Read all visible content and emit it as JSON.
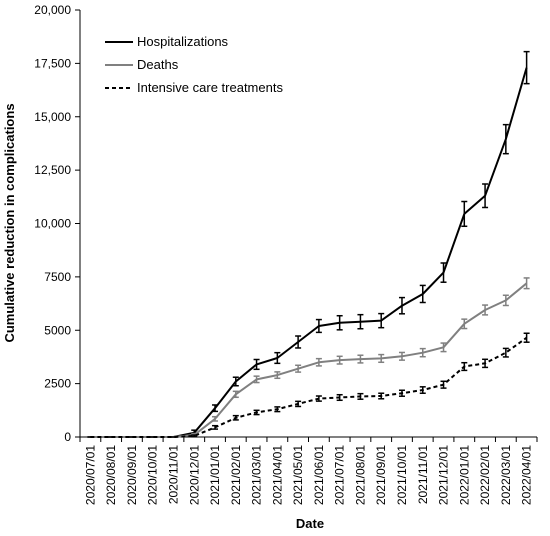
{
  "chart_data": {
    "type": "line",
    "xlabel": "Date",
    "ylabel": "Cumulative reduction in complications",
    "ylim": [
      0,
      20000
    ],
    "y_ticks": [
      "0",
      "2500",
      "5000",
      "7500",
      "10,000",
      "12,500",
      "15,000",
      "17,500",
      "20,000"
    ],
    "y_tick_values": [
      0,
      2500,
      5000,
      7500,
      10000,
      12500,
      15000,
      17500,
      20000
    ],
    "grid": false,
    "legend_position": "top-left",
    "categories": [
      "2020/07/01",
      "2020/08/01",
      "2020/09/01",
      "2020/10/01",
      "2020/11/01",
      "2020/12/01",
      "2021/01/01",
      "2021/02/01",
      "2021/03/01",
      "2021/04/01",
      "2021/05/01",
      "2021/06/01",
      "2021/07/01",
      "2021/08/01",
      "2021/09/01",
      "2021/10/01",
      "2021/11/01",
      "2021/12/01",
      "2022/01/01",
      "2022/02/01",
      "2022/03/01",
      "2022/04/01"
    ],
    "series": [
      {
        "name": "Hospitalizations",
        "color": "#000000",
        "dash": "solid",
        "values": [
          0,
          0,
          0,
          0,
          0,
          200,
          1350,
          2600,
          3400,
          3700,
          4450,
          5200,
          5350,
          5400,
          5450,
          6150,
          6700,
          7700,
          10450,
          11300,
          13950,
          17300
        ],
        "errors": [
          0,
          0,
          0,
          0,
          0,
          120,
          150,
          200,
          230,
          250,
          280,
          300,
          330,
          330,
          330,
          380,
          400,
          450,
          580,
          550,
          680,
          750
        ]
      },
      {
        "name": "Deaths",
        "color": "#808080",
        "dash": "solid",
        "values": [
          0,
          0,
          0,
          0,
          0,
          100,
          850,
          2000,
          2700,
          2900,
          3200,
          3500,
          3600,
          3650,
          3680,
          3780,
          3950,
          4200,
          5300,
          5950,
          6400,
          7200
        ],
        "errors": [
          0,
          0,
          0,
          0,
          0,
          60,
          100,
          140,
          150,
          150,
          160,
          170,
          180,
          180,
          180,
          180,
          190,
          200,
          220,
          230,
          240,
          250
        ]
      },
      {
        "name": "Intensive care treatments",
        "color": "#000000",
        "dash": "dashed",
        "values": [
          0,
          0,
          0,
          0,
          0,
          50,
          450,
          900,
          1150,
          1300,
          1550,
          1800,
          1850,
          1900,
          1920,
          2050,
          2200,
          2450,
          3300,
          3450,
          3950,
          4650
        ],
        "errors": [
          0,
          0,
          0,
          0,
          0,
          40,
          80,
          100,
          100,
          110,
          120,
          120,
          130,
          130,
          130,
          140,
          150,
          160,
          180,
          190,
          200,
          210
        ]
      }
    ]
  }
}
